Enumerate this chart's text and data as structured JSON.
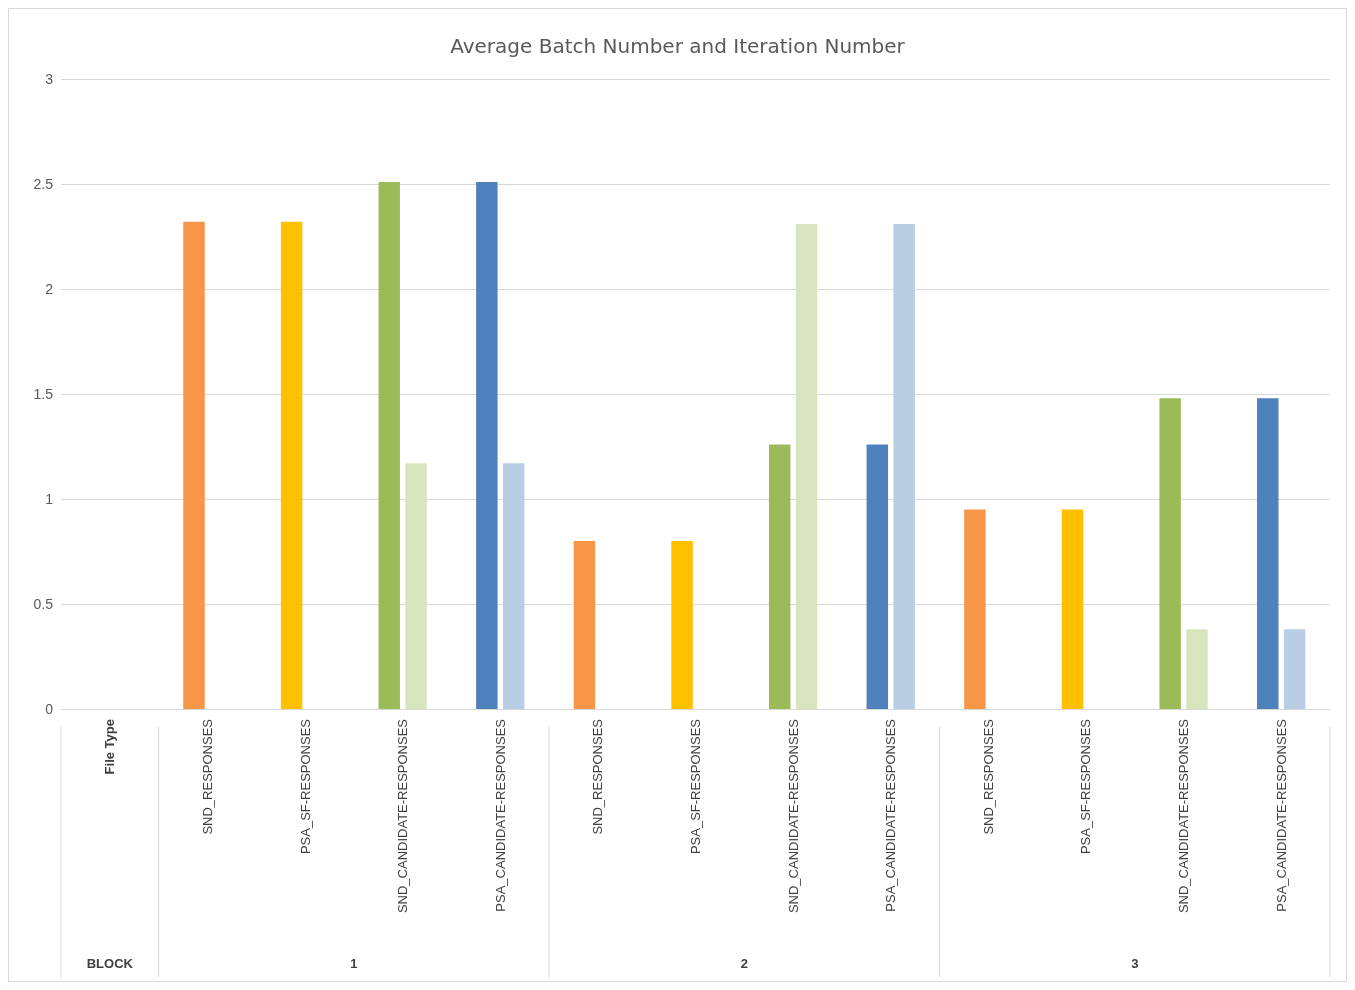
{
  "chart_data": {
    "type": "bar",
    "title": "Average Batch Number and Iteration Number",
    "categories": [
      "File Type",
      "SND_RESPONSES",
      "PSA_SF-RESPONSES",
      "SND_CANDIDATE-RESPONSES",
      "PSA_CANDIDATE-RESPONSES",
      "SND_RESPONSES",
      "PSA_SF-RESPONSES",
      "SND_CANDIDATE-RESPONSES",
      "PSA_CANDIDATE-RESPONSES",
      "SND_RESPONSES",
      "PSA_SF-RESPONSES",
      "SND_CANDIDATE-RESPONSES",
      "PSA_CANDIDATE-RESPONSES"
    ],
    "series": [
      {
        "values": [
          null,
          2.32,
          2.32,
          2.51,
          2.51,
          0.8,
          0.8,
          1.26,
          1.26,
          0.95,
          0.95,
          1.48,
          1.48
        ],
        "colors": [
          "#f79646",
          "#f79646",
          "#ffc000",
          "#9bbb59",
          "#4f81bd",
          "#f79646",
          "#ffc000",
          "#9bbb59",
          "#4f81bd",
          "#f79646",
          "#ffc000",
          "#9bbb59",
          "#4f81bd"
        ]
      },
      {
        "values": [
          null,
          null,
          null,
          1.17,
          1.17,
          null,
          null,
          2.31,
          2.31,
          null,
          null,
          0.38,
          0.38
        ],
        "colors": [
          "#d7e4bd",
          "#d7e4bd",
          "#d7e4bd",
          "#d7e4bd",
          "#b9cde5",
          "#d7e4bd",
          "#d7e4bd",
          "#d7e4bd",
          "#b9cde5",
          "#d7e4bd",
          "#d7e4bd",
          "#d7e4bd",
          "#b9cde5"
        ]
      }
    ],
    "annotations": [
      "BLOCK",
      "1",
      "2",
      "3"
    ],
    "ylim": [
      0,
      3
    ],
    "yticks": [
      0,
      0.5,
      1,
      1.5,
      2,
      2.5,
      3
    ],
    "grid": "y"
  }
}
